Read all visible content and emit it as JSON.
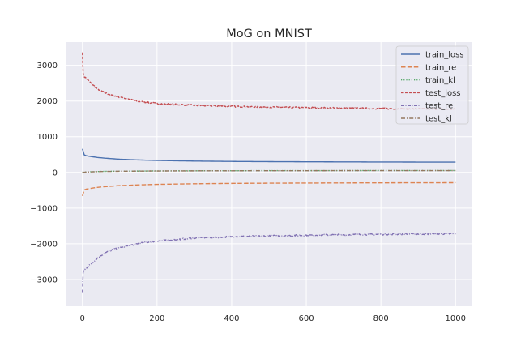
{
  "chart_data": {
    "type": "line",
    "title": "MoG on MNIST",
    "xlabel": "",
    "ylabel": "",
    "xlim": [
      -45,
      1045
    ],
    "ylim": [
      -3750,
      3650
    ],
    "xticks": [
      0,
      200,
      400,
      600,
      800,
      1000
    ],
    "yticks": [
      -3000,
      -2000,
      -1000,
      0,
      1000,
      2000,
      3000
    ],
    "xtick_labels": [
      "0",
      "200",
      "400",
      "600",
      "800",
      "1000"
    ],
    "ytick_labels": [
      "−3000",
      "−2000",
      "−1000",
      "0",
      "1000",
      "2000",
      "3000"
    ],
    "grid": true,
    "style": "seaborn-darkgrid",
    "legend_position": "top-right",
    "series": [
      {
        "name": "train_loss",
        "color": "#4c72b0",
        "linestyle": "solid",
        "x": [
          0,
          2,
          5,
          10,
          20,
          40,
          60,
          80,
          100,
          150,
          200,
          300,
          400,
          500,
          600,
          700,
          800,
          900,
          1000
        ],
        "y": [
          660,
          520,
          490,
          470,
          450,
          420,
          400,
          385,
          370,
          350,
          335,
          318,
          308,
          302,
          298,
          295,
          292,
          290,
          288
        ]
      },
      {
        "name": "train_re",
        "color": "#dd8452",
        "linestyle": "dashed",
        "x": [
          0,
          2,
          5,
          10,
          20,
          40,
          60,
          80,
          100,
          150,
          200,
          300,
          400,
          500,
          600,
          700,
          800,
          900,
          1000
        ],
        "y": [
          -660,
          -520,
          -490,
          -470,
          -450,
          -420,
          -400,
          -385,
          -370,
          -350,
          -335,
          -318,
          -308,
          -302,
          -298,
          -295,
          -292,
          -290,
          -288
        ]
      },
      {
        "name": "train_kl",
        "color": "#55a868",
        "linestyle": "dotted",
        "x": [
          0,
          10,
          50,
          100,
          200,
          300,
          400,
          500,
          600,
          700,
          800,
          900,
          1000
        ],
        "y": [
          5,
          15,
          28,
          35,
          42,
          46,
          48,
          50,
          51,
          52,
          53,
          53,
          54
        ]
      },
      {
        "name": "test_loss",
        "color": "#c44e52",
        "linestyle": "dashed-noisy",
        "x": [
          0,
          2,
          5,
          10,
          20,
          40,
          60,
          80,
          100,
          150,
          200,
          300,
          400,
          500,
          600,
          700,
          800,
          900,
          1000
        ],
        "y": [
          3380,
          2750,
          2680,
          2640,
          2530,
          2340,
          2230,
          2160,
          2110,
          1990,
          1930,
          1880,
          1850,
          1830,
          1815,
          1800,
          1790,
          1780,
          1770
        ]
      },
      {
        "name": "test_re",
        "color": "#8172b3",
        "linestyle": "dashdot-noisy",
        "x": [
          0,
          2,
          5,
          10,
          20,
          40,
          60,
          80,
          100,
          150,
          200,
          300,
          400,
          500,
          600,
          700,
          800,
          900,
          1000
        ],
        "y": [
          -3380,
          -2800,
          -2730,
          -2680,
          -2590,
          -2400,
          -2260,
          -2170,
          -2110,
          -1990,
          -1920,
          -1840,
          -1800,
          -1780,
          -1760,
          -1745,
          -1735,
          -1725,
          -1720
        ]
      },
      {
        "name": "test_kl",
        "color": "#937860",
        "linestyle": "dashdot",
        "x": [
          0,
          10,
          50,
          100,
          200,
          300,
          400,
          500,
          600,
          700,
          800,
          900,
          1000
        ],
        "y": [
          2,
          10,
          25,
          33,
          40,
          44,
          46,
          48,
          49,
          50,
          51,
          51,
          52
        ]
      }
    ]
  }
}
